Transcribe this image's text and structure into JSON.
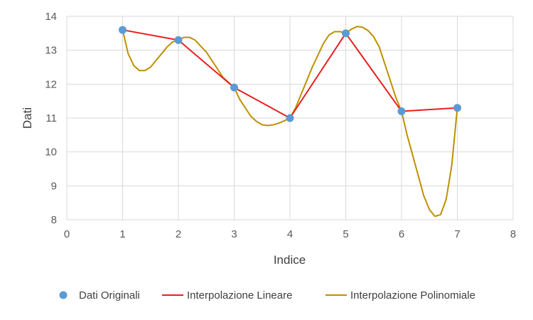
{
  "chart_data": {
    "type": "scatter",
    "title": "",
    "xlabel": "Indice",
    "ylabel": "Dati",
    "xlim": [
      0,
      8
    ],
    "ylim": [
      8,
      14
    ],
    "x_ticks": [
      0,
      1,
      2,
      3,
      4,
      5,
      6,
      7,
      8
    ],
    "y_ticks": [
      8,
      9,
      10,
      11,
      12,
      13,
      14
    ],
    "grid": true,
    "legend_position": "bottom",
    "series": [
      {
        "name": "Dati Originali",
        "kind": "markers",
        "color": "#5B9BD5",
        "x": [
          1,
          2,
          3,
          4,
          5,
          6,
          7
        ],
        "y": [
          13.6,
          13.3,
          11.9,
          11.0,
          13.5,
          11.2,
          11.3
        ]
      },
      {
        "name": "Interpolazione Lineare",
        "kind": "line",
        "color": "#E8201F",
        "x": [
          1,
          2,
          3,
          4,
          5,
          6,
          7
        ],
        "y": [
          13.6,
          13.3,
          11.9,
          11.0,
          13.5,
          11.2,
          11.3
        ]
      },
      {
        "name": "Interpolazione Polinomiale",
        "kind": "line",
        "color": "#BF9000",
        "x": [
          1.0,
          1.1,
          1.2,
          1.3,
          1.4,
          1.5,
          1.6,
          1.7,
          1.8,
          1.9,
          2.0,
          2.1,
          2.2,
          2.3,
          2.4,
          2.5,
          2.6,
          2.7,
          2.8,
          2.9,
          3.0,
          3.1,
          3.2,
          3.3,
          3.4,
          3.5,
          3.6,
          3.7,
          3.8,
          3.9,
          4.0,
          4.1,
          4.2,
          4.3,
          4.4,
          4.5,
          4.6,
          4.7,
          4.8,
          4.9,
          5.0,
          5.1,
          5.2,
          5.3,
          5.4,
          5.5,
          5.6,
          5.7,
          5.8,
          5.9,
          6.0,
          6.1,
          6.2,
          6.3,
          6.4,
          6.5,
          6.6,
          6.7,
          6.8,
          6.9,
          7.0
        ],
        "y": [
          13.6,
          12.9,
          12.55,
          12.4,
          12.4,
          12.5,
          12.7,
          12.9,
          13.1,
          13.25,
          13.3,
          13.38,
          13.38,
          13.3,
          13.12,
          12.95,
          12.7,
          12.45,
          12.2,
          12.05,
          11.9,
          11.55,
          11.3,
          11.05,
          10.9,
          10.8,
          10.78,
          10.8,
          10.85,
          10.92,
          11.0,
          11.3,
          11.7,
          12.1,
          12.5,
          12.85,
          13.2,
          13.45,
          13.55,
          13.55,
          13.5,
          13.62,
          13.7,
          13.68,
          13.58,
          13.4,
          13.1,
          12.6,
          12.1,
          11.6,
          11.2,
          10.5,
          9.9,
          9.3,
          8.7,
          8.3,
          8.1,
          8.15,
          8.6,
          9.6,
          11.3
        ]
      }
    ]
  }
}
